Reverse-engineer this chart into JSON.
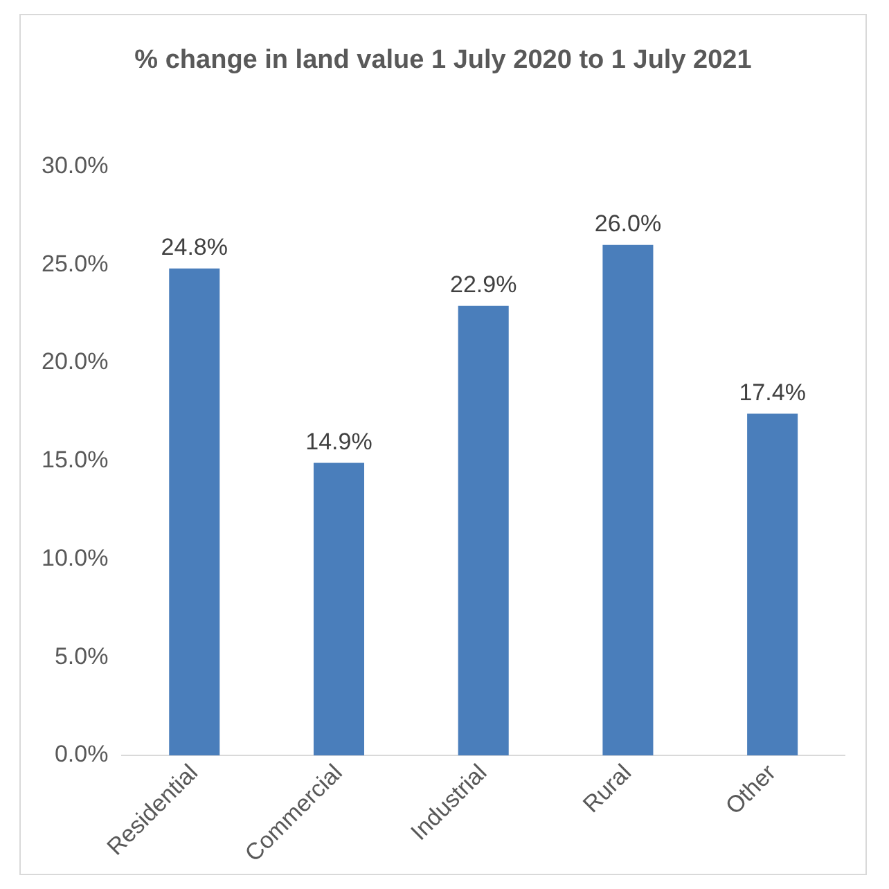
{
  "chart_data": {
    "type": "bar",
    "title": "% change in land value 1 July 2020 to 1 July 2021",
    "categories": [
      "Residential",
      "Commercial",
      "Industrial",
      "Rural",
      "Other"
    ],
    "values": [
      24.8,
      14.9,
      22.9,
      26.0,
      17.4
    ],
    "value_labels": [
      "24.8%",
      "14.9%",
      "22.9%",
      "26.0%",
      "17.4%"
    ],
    "color": "#4a7ebb",
    "ylim": [
      0,
      30
    ],
    "yticks": [
      {
        "value": 0,
        "label": "0.0%"
      },
      {
        "value": 5,
        "label": "5.0%"
      },
      {
        "value": 10,
        "label": "10.0%"
      },
      {
        "value": 15,
        "label": "15.0%"
      },
      {
        "value": 20,
        "label": "20.0%"
      },
      {
        "value": 25,
        "label": "25.0%"
      },
      {
        "value": 30,
        "label": "30.0%"
      }
    ],
    "grid": false,
    "legend": false
  }
}
